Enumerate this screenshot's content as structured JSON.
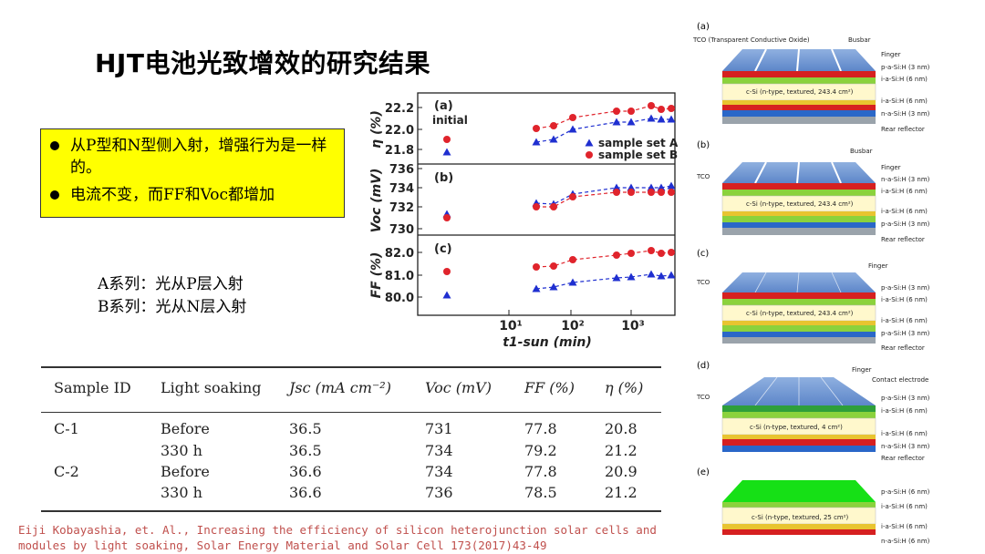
{
  "title": "HJT电池光致增效的研究结果",
  "callout": {
    "items": [
      "从P型和N型侧入射，增强行为是一样的。",
      "电流不变，而FF和Voc都增加"
    ]
  },
  "series_notes": [
    "A系列：光从P层入射",
    "B系列：光从N层入射"
  ],
  "plot": {
    "panels": [
      {
        "tag": "(a)",
        "ylabel": "η (%)",
        "ticks": [
          "22.2",
          "22.0",
          "21.8"
        ]
      },
      {
        "tag": "(b)",
        "ylabel": "Voc (mV)",
        "ticks": [
          "736",
          "734",
          "732",
          "730"
        ]
      },
      {
        "tag": "(c)",
        "ylabel": "FF (%)",
        "ticks": [
          "82.0",
          "81.0",
          "80.0"
        ]
      }
    ],
    "initial_label": "initial",
    "legend": [
      "sample set A",
      "sample set B"
    ],
    "xticks": [
      "10¹",
      "10²",
      "10³"
    ],
    "xlabel": "t1-sun (min)",
    "colors": {
      "A": "#1f2fd0",
      "B": "#e0242c"
    }
  },
  "table": {
    "headers": [
      "Sample ID",
      "Light soaking",
      "Jsc (mA cm⁻²)",
      "Voc (mV)",
      "FF (%)",
      "η (%)"
    ],
    "rows": [
      [
        "C-1",
        "Before",
        "36.5",
        "731",
        "77.8",
        "20.8"
      ],
      [
        "",
        "330 h",
        "36.5",
        "734",
        "79.2",
        "21.2"
      ],
      [
        "C-2",
        "Before",
        "36.6",
        "734",
        "77.8",
        "20.9"
      ],
      [
        "",
        "330 h",
        "36.6",
        "736",
        "78.5",
        "21.2"
      ]
    ]
  },
  "citation": [
    "Eiji Kobayashia, et. Al., Increasing the efficiency of silicon heterojunction solar cells and",
    "modules by light soaking, Solar Energy Material and Solar Cell 173(2017)43-49"
  ],
  "cell_diagrams": [
    {
      "tag": "(a)",
      "labels": [
        "TCO (Transparent Conductive Oxide)",
        "Busbar",
        "Finger",
        "p-a-Si:H (3 nm)",
        "i-a-Si:H (6 nm)",
        "c-Si (n-type, textured, 243.4 cm²)",
        "i-a-Si:H (6 nm)",
        "n-a-Si:H (3 nm)",
        "Rear reflector"
      ]
    },
    {
      "tag": "(b)",
      "labels": [
        "Busbar",
        "TCO",
        "Finger",
        "n-a-Si:H (3 nm)",
        "i-a-Si:H (6 nm)",
        "c-Si (n-type, textured, 243.4 cm²)",
        "i-a-Si:H (6 nm)",
        "p-a-Si:H (3 nm)",
        "Rear reflector"
      ]
    },
    {
      "tag": "(c)",
      "labels": [
        "Finger",
        "TCO",
        "p-a-Si:H (3 nm)",
        "i-a-Si:H (6 nm)",
        "c-Si (n-type, textured, 243.4 cm²)",
        "i-a-Si:H (6 nm)",
        "p-a-Si:H (3 nm)",
        "Rear reflector"
      ]
    },
    {
      "tag": "(d)",
      "labels": [
        "Finger",
        "Contact electrode",
        "TCO",
        "p-a-Si:H (3 nm)",
        "i-a-Si:H (6 nm)",
        "c-Si (n-type, textured, 4 cm²)",
        "i-a-Si:H (6 nm)",
        "n-a-Si:H (3 nm)",
        "Rear reflector"
      ]
    },
    {
      "tag": "(e)",
      "labels": [
        "p-a-Si:H (6 nm)",
        "i-a-Si:H (6 nm)",
        "c-Si (n-type, textured, 25 cm²)",
        "i-a-Si:H (6 nm)",
        "n-a-Si:H (6 nm)"
      ]
    }
  ]
}
